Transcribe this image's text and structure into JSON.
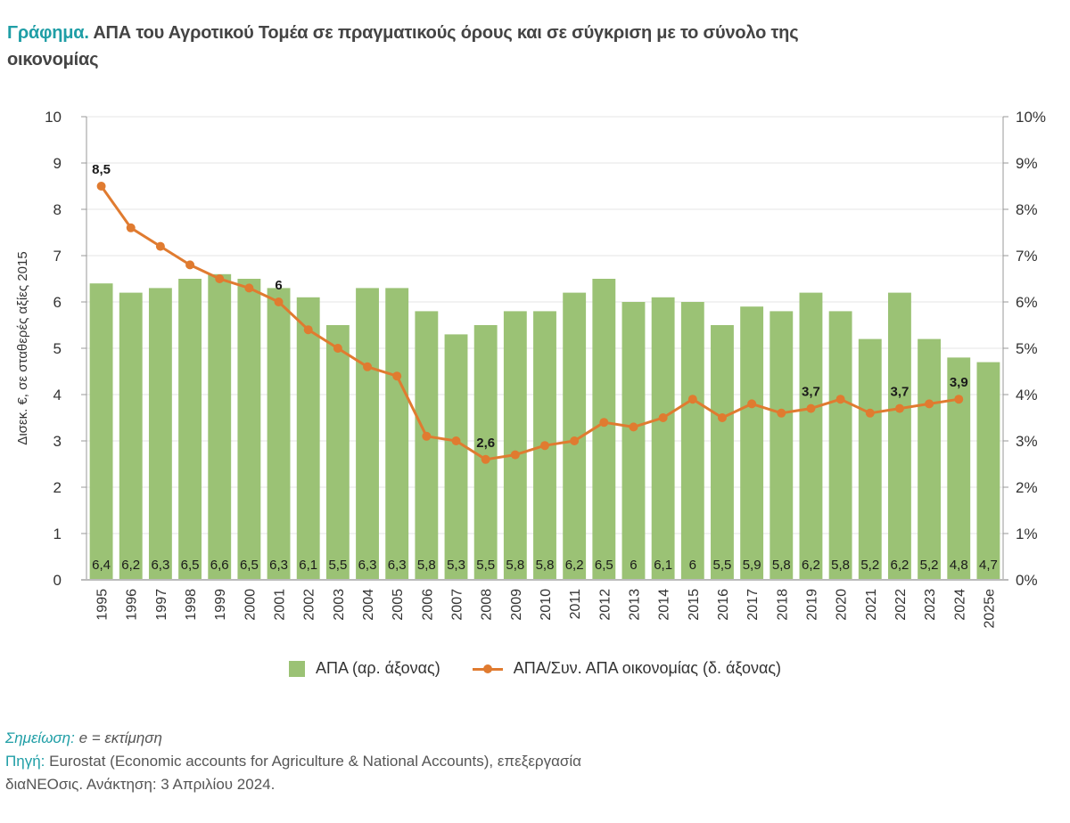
{
  "title": {
    "lead": "Γράφημα.",
    "text": " ΑΠΑ του Αγροτικού Τομέα σε πραγματικούς όρους και σε σύγκριση με το σύνολο της οικονομίας"
  },
  "chart_data": {
    "type": "bar",
    "title": "ΑΠΑ του Αγροτικού Τομέα σε πραγματικούς όρους και σε σύγκριση με το σύνολο της οικονομίας",
    "categories": [
      "1995",
      "1996",
      "1997",
      "1998",
      "1999",
      "2000",
      "2001",
      "2002",
      "2003",
      "2004",
      "2005",
      "2006",
      "2007",
      "2008",
      "2009",
      "2010",
      "2011",
      "2012",
      "2013",
      "2014",
      "2015",
      "2016",
      "2017",
      "2018",
      "2019",
      "2020",
      "2021",
      "2022",
      "2023",
      "2024",
      "2025e"
    ],
    "series": [
      {
        "name": "ΑΠΑ (αρ. άξονας)",
        "type": "bar",
        "axis": "left",
        "color": "#9bc275",
        "values": [
          6.4,
          6.2,
          6.3,
          6.5,
          6.6,
          6.5,
          6.3,
          6.1,
          5.5,
          6.3,
          6.3,
          5.8,
          5.3,
          5.5,
          5.8,
          5.8,
          6.2,
          6.5,
          6,
          6.1,
          6,
          5.5,
          5.9,
          5.8,
          6.2,
          5.8,
          5.2,
          6.2,
          5.2,
          4.8,
          4.7
        ],
        "labels": [
          "6,4",
          "6,2",
          "6,3",
          "6,5",
          "6,6",
          "6,5",
          "6,3",
          "6,1",
          "5,5",
          "6,3",
          "6,3",
          "5,8",
          "5,3",
          "5,5",
          "5,8",
          "5,8",
          "6,2",
          "6,5",
          "6",
          "6,1",
          "6",
          "5,5",
          "5,9",
          "5,8",
          "6,2",
          "5,8",
          "5,2",
          "6,2",
          "5,2",
          "4,8",
          "4,7"
        ]
      },
      {
        "name": "ΑΠΑ/Συν. ΑΠΑ οικονομίας (δ. άξονας)",
        "type": "line",
        "axis": "right",
        "unit": "%",
        "color": "#e07b30",
        "values": [
          8.5,
          7.6,
          7.2,
          6.8,
          6.5,
          6.3,
          6.0,
          5.4,
          5.0,
          4.6,
          4.4,
          3.1,
          3.0,
          2.6,
          2.7,
          2.9,
          3.0,
          3.4,
          3.3,
          3.5,
          3.9,
          3.5,
          3.8,
          3.6,
          3.7,
          3.9,
          3.6,
          3.7,
          3.8,
          3.9,
          null
        ],
        "annotations": [
          {
            "index": 0,
            "label": "8,5"
          },
          {
            "index": 6,
            "label": "6"
          },
          {
            "index": 13,
            "label": "2,6"
          },
          {
            "index": 24,
            "label": "3,7"
          },
          {
            "index": 27,
            "label": "3,7"
          },
          {
            "index": 29,
            "label": "3,9"
          }
        ]
      }
    ],
    "ylabel": "Δισεκ. €, σε σταθερές αξίες 2015",
    "ylim": [
      0,
      10
    ],
    "yticks": [
      "0",
      "1",
      "2",
      "3",
      "4",
      "5",
      "6",
      "7",
      "8",
      "9",
      "10"
    ],
    "y2lim": [
      0,
      10
    ],
    "y2ticks": [
      "0%",
      "1%",
      "2%",
      "3%",
      "4%",
      "5%",
      "6%",
      "7%",
      "8%",
      "9%",
      "10%"
    ],
    "grid": true,
    "legend": "bottom-center"
  },
  "legend": {
    "bar_label": "ΑΠΑ (αρ. άξονας)",
    "line_label": "ΑΠΑ/Συν. ΑΠΑ οικονομίας (δ. άξονας)"
  },
  "notes": {
    "note_label": "Σημείωση:",
    "note_text": " e = εκτίμηση",
    "source_label": "Πηγή:",
    "source_text": " Eurostat (Economic accounts for Agriculture & National Accounts), επεξεργασία",
    "source_text2": "διαΝΕΟσις. Ανάκτηση: 3 Απριλίου 2024."
  }
}
